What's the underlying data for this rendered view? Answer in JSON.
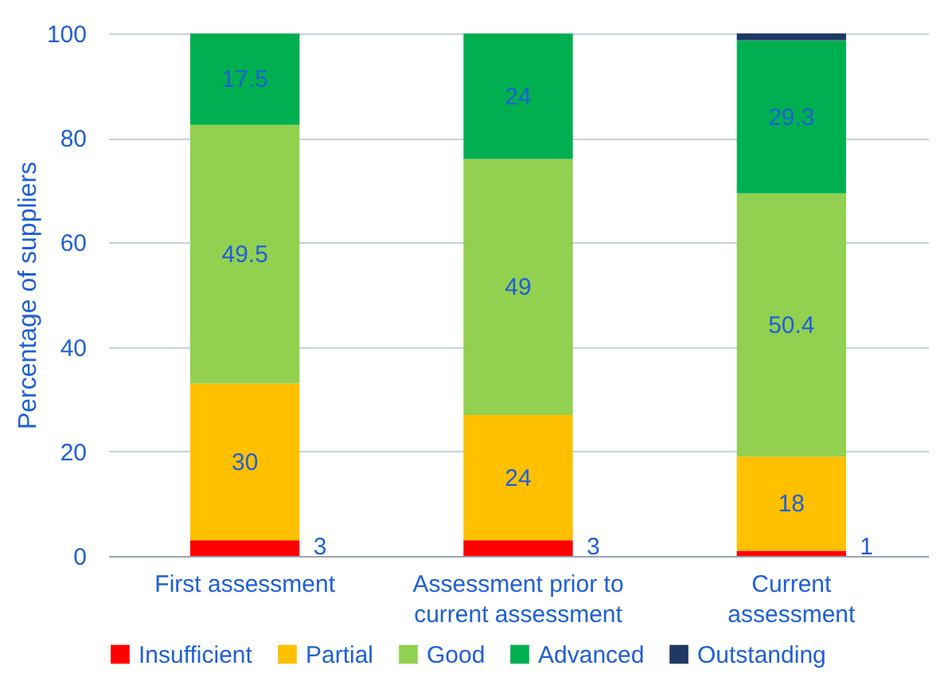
{
  "chart_data": {
    "type": "bar",
    "stacked": true,
    "ylabel": "Percentage of suppliers",
    "categories": [
      "First assessment",
      "Assessment prior to\ncurrent assessment",
      "Current\nassessment"
    ],
    "series": [
      {
        "name": "Insufficient",
        "color": "#ff0000",
        "values": [
          3,
          3,
          1
        ],
        "value_labels": [
          "3",
          "3",
          "1"
        ]
      },
      {
        "name": "Partial",
        "color": "#ffc000",
        "values": [
          30,
          24,
          18
        ],
        "value_labels": [
          "30",
          "24",
          "18"
        ]
      },
      {
        "name": "Good",
        "color": "#92d050",
        "values": [
          49.5,
          49,
          50.4
        ],
        "value_labels": [
          "49.5",
          "49",
          "50.4"
        ]
      },
      {
        "name": "Advanced",
        "color": "#00b050",
        "values": [
          17.5,
          24,
          29.3
        ],
        "value_labels": [
          "17.5",
          "24",
          "29.3"
        ]
      },
      {
        "name": "Outstanding",
        "color": "#1f3864",
        "values": [
          0,
          0,
          1.3
        ],
        "value_labels": [
          null,
          null,
          null
        ]
      }
    ],
    "ylim": [
      0,
      100
    ],
    "yticks": [
      0,
      20,
      40,
      60,
      80,
      100
    ],
    "grid": "y",
    "legend": "bottom"
  }
}
